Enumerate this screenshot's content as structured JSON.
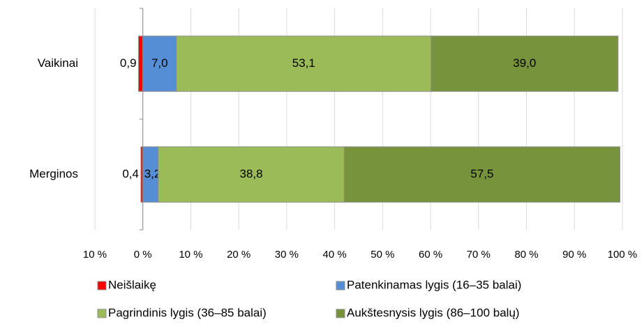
{
  "chart_data": {
    "type": "stacked_barh",
    "categories": [
      "Vaikinai",
      "Merginos"
    ],
    "series": [
      {
        "name": "Neišlaikę",
        "color": "#ff0000",
        "values": [
          -0.9,
          -0.4
        ],
        "value_labels": [
          "0,9",
          "0,4"
        ]
      },
      {
        "name": "Patenkinamas lygis (16–35 balai)",
        "color": "#558ed5",
        "values": [
          7.0,
          3.2
        ],
        "value_labels": [
          "7,0",
          "3,2"
        ]
      },
      {
        "name": "Pagrindinis lygis (36–85 balai)",
        "color": "#9bbb59",
        "values": [
          53.1,
          38.8
        ],
        "value_labels": [
          "53,1",
          "38,8"
        ]
      },
      {
        "name": "Aukštesnysis lygis (86–100 balų)",
        "color": "#77933c",
        "values": [
          39.0,
          57.5
        ],
        "value_labels": [
          "39,0",
          "57,5"
        ]
      }
    ],
    "xlim": [
      -10,
      100
    ],
    "xticks": [
      {
        "value": -10,
        "label": "10 %"
      },
      {
        "value": 0,
        "label": "0 %"
      },
      {
        "value": 10,
        "label": "10 %"
      },
      {
        "value": 20,
        "label": "20 %"
      },
      {
        "value": 30,
        "label": "30 %"
      },
      {
        "value": 40,
        "label": "40 %"
      },
      {
        "value": 50,
        "label": "50 %"
      },
      {
        "value": 60,
        "label": "60 %"
      },
      {
        "value": 70,
        "label": "70 %"
      },
      {
        "value": 80,
        "label": "80 %"
      },
      {
        "value": 90,
        "label": "90 %"
      },
      {
        "value": 100,
        "label": "100 %"
      }
    ],
    "grid": true
  }
}
